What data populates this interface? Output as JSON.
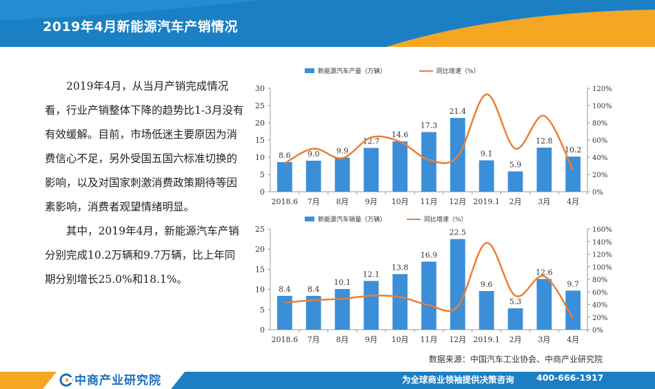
{
  "page": {
    "title": "2019年4月新能源汽车产销情况",
    "paragraphs": [
      "2019年4月，从当月产销完成情况看，行业产销整体下降的趋势比1-3月没有有效缓解。目前，市场低迷主要原因为消费信心不足，另外受国五国六标准切换的影响，以及对国家刺激消费政策期待等因素影响，消费者观望情绪明显。",
      "其中，2019年4月，新能源汽车产销分别完成10.2万辆和9.7万辆，比上年同期分别增长25.0%和18.1%。"
    ],
    "source": "数据来源：中国汽车工业协会、中商产业研究院",
    "footer": {
      "brand": "中商产业研究院",
      "slogan": "为全球商业领袖提供决策咨询",
      "phone": "400-666-1917"
    }
  },
  "colors": {
    "header_blue": "#1b7fc4",
    "accent_orange": "#f5a623",
    "bar_blue": "#3b8fd9",
    "line_orange": "#ed7d31"
  },
  "chart_data": [
    {
      "type": "bar",
      "categories": [
        "2018.6",
        "7月",
        "8月",
        "9月",
        "10月",
        "11月",
        "12月",
        "2019.1",
        "2月",
        "3月",
        "4月"
      ],
      "series": [
        {
          "name": "新能源汽车产量（万辆）",
          "type": "bar",
          "axis": "left",
          "values": [
            8.6,
            9.0,
            9.9,
            12.7,
            14.6,
            17.3,
            21.4,
            9.1,
            5.9,
            12.8,
            10.2
          ],
          "labels": [
            "8.6",
            "9.0",
            "9.9",
            "12.7",
            "14.6",
            "17.3",
            "21.4",
            "9.1",
            "5.9",
            "12.8",
            "10.2"
          ]
        },
        {
          "name": "同比增速（%）",
          "type": "line",
          "axis": "right",
          "values": [
            33,
            50,
            39,
            63,
            58,
            37,
            41,
            113,
            50,
            88,
            25
          ]
        }
      ],
      "yleft": {
        "min": 0,
        "max": 30,
        "ticks": [
          "0",
          "5",
          "10",
          "15",
          "20",
          "25",
          "30"
        ]
      },
      "yright": {
        "min": 0,
        "max": 120,
        "ticks": [
          "0%",
          "20%",
          "40%",
          "60%",
          "80%",
          "100%",
          "120%"
        ]
      },
      "legend": "top"
    },
    {
      "type": "bar",
      "categories": [
        "2018.6",
        "7月",
        "8月",
        "9月",
        "10月",
        "11月",
        "12月",
        "2019.1",
        "2月",
        "3月",
        "4月"
      ],
      "series": [
        {
          "name": "新能源汽车销量（万辆）",
          "type": "bar",
          "axis": "left",
          "values": [
            8.4,
            8.4,
            10.1,
            12.1,
            13.8,
            16.9,
            22.5,
            9.6,
            5.3,
            12.6,
            9.7
          ],
          "labels": [
            "8.4",
            "8.4",
            "10.1",
            "12.1",
            "13.8",
            "16.9",
            "22.5",
            "9.6",
            "5.3",
            "12.6",
            "9.7"
          ]
        },
        {
          "name": "同比增速（%）",
          "type": "line",
          "axis": "right",
          "values": [
            43,
            47,
            49,
            54,
            52,
            39,
            37,
            138,
            54,
            85,
            18
          ]
        }
      ],
      "yleft": {
        "min": 0,
        "max": 25,
        "ticks": [
          "0",
          "5",
          "10",
          "15",
          "20",
          "25"
        ]
      },
      "yright": {
        "min": 0,
        "max": 160,
        "ticks": [
          "0%",
          "20%",
          "40%",
          "60%",
          "80%",
          "100%",
          "120%",
          "140%",
          "160%"
        ]
      },
      "legend": "top"
    }
  ]
}
